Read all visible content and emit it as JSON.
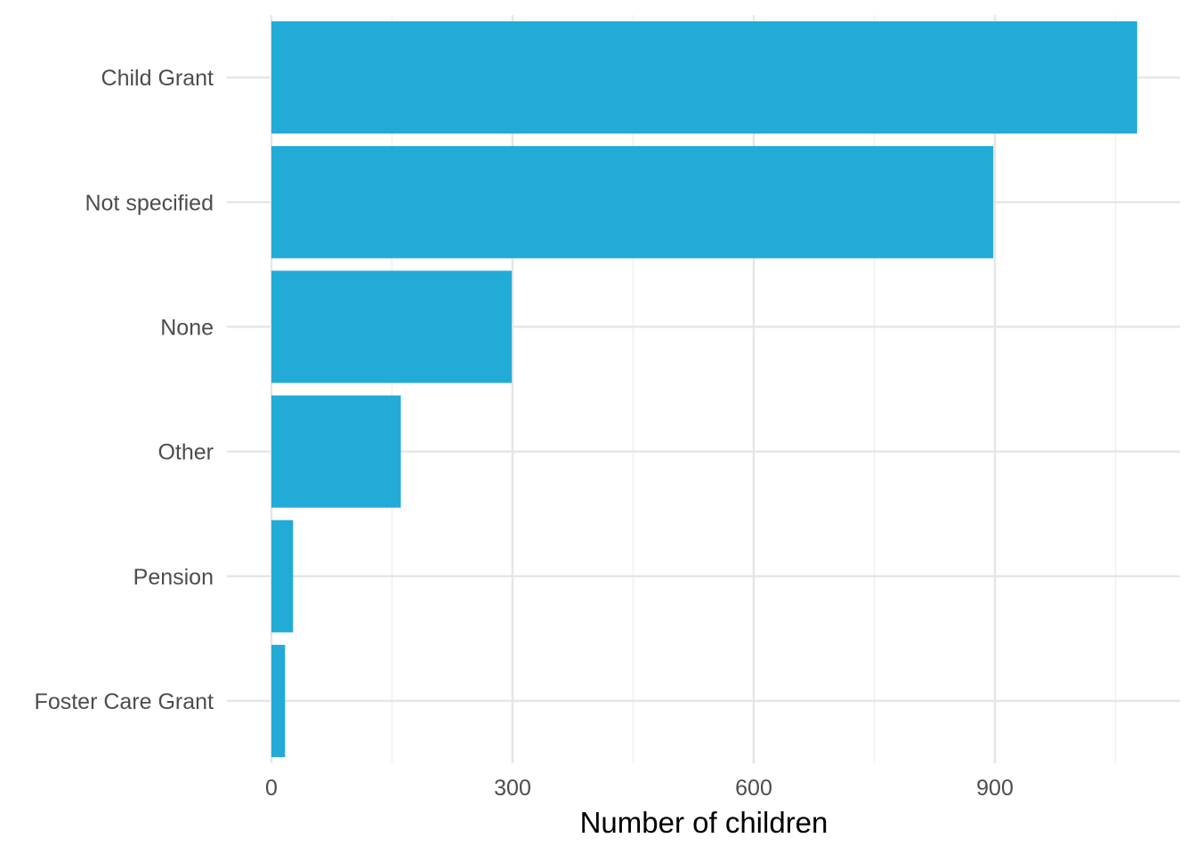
{
  "chart_data": {
    "type": "bar",
    "orientation": "horizontal",
    "categories": [
      "Foster Care Grant",
      "Pension",
      "Other",
      "None",
      "Not specified",
      "Child Grant"
    ],
    "values": [
      17,
      27,
      161,
      299,
      898,
      1077
    ],
    "title": "",
    "xlabel": "Number of children",
    "ylabel": "",
    "xlim": [
      0,
      1077
    ],
    "x_ticks": [
      0,
      300,
      600,
      900
    ],
    "grid": true,
    "legend": "none",
    "bar_color": "#22abd6"
  }
}
